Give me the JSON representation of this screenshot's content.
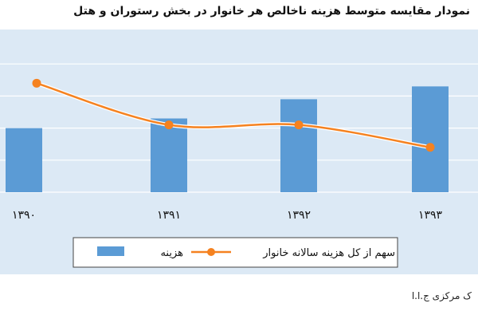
{
  "title": "نمودار مقایسه متوسط هزینه ناخالص هر خانوار در بخش رستوران و هتل",
  "source": "ک مرکزی ج.ا.ا",
  "colors": {
    "bar": "#5b9bd5",
    "line": "#f58220",
    "panel": "#dce9f5",
    "grid": "#ffffff"
  },
  "chart_data": {
    "type": "bar",
    "categories": [
      "۱۳۹۰",
      "۱۳۹۱",
      "۱۳۹۲",
      "۱۳۹۳"
    ],
    "series": [
      {
        "name": "هزینه",
        "type": "bar",
        "values": [
          2.0,
          2.3,
          2.9,
          3.3
        ]
      },
      {
        "name": "سهم از کل هزینه سالانه خانوار",
        "type": "line",
        "values": [
          3.4,
          2.1,
          2.1,
          1.4
        ]
      }
    ],
    "ylim": [
      0,
      5
    ],
    "grid": true,
    "legend": "bottom"
  }
}
